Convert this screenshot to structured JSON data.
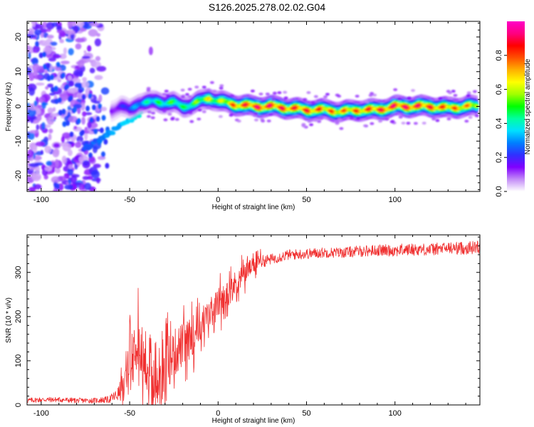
{
  "title": "S126.2025.278.02.02.G04",
  "chart_data": [
    {
      "type": "heatmap",
      "title": "S126.2025.278.02.02.G04",
      "xlabel": "Height of straight line (km)",
      "ylabel": "Frequency (Hz)",
      "xlim": [
        -108,
        148
      ],
      "ylim": [
        -24.5,
        24.5
      ],
      "xticks": [
        -100,
        -50,
        0,
        50,
        100
      ],
      "xtick_labels": [
        "-100",
        "-50",
        "0",
        "50",
        "100"
      ],
      "yticks": [
        -20,
        -10,
        0,
        10,
        20
      ],
      "ytick_labels": [
        "-20",
        "-10",
        "0",
        "10",
        "20"
      ],
      "ridge": {
        "x": [
          -60,
          -55,
          -50,
          -45,
          -40,
          -35,
          -30,
          -25,
          -20,
          -15,
          -10,
          -5,
          0,
          5,
          10,
          20,
          30,
          40,
          50,
          60,
          70,
          80,
          90,
          100,
          110,
          120,
          130,
          140,
          147
        ],
        "freq": [
          -1,
          0,
          -1,
          1,
          1,
          1.5,
          1,
          1,
          0,
          0.5,
          1.5,
          2.5,
          1.5,
          1,
          0.5,
          0,
          0,
          -0.5,
          -1,
          -1,
          -1.5,
          -1,
          -1,
          0,
          0,
          0,
          -0.5,
          0,
          0
        ],
        "amplitude": [
          0.15,
          0.2,
          0.3,
          0.35,
          0.45,
          0.5,
          0.5,
          0.55,
          0.5,
          0.55,
          0.6,
          0.7,
          0.6,
          0.75,
          0.85,
          0.95,
          0.95,
          0.9,
          0.9,
          0.85,
          0.8,
          0.85,
          0.9,
          0.95,
          0.95,
          0.9,
          0.85,
          0.8,
          0.75
        ]
      },
      "colorbar": {
        "label": "Normalized spectral amplitude",
        "range": [
          0,
          1
        ],
        "ticks": [
          0,
          0.2,
          0.4,
          0.6,
          0.8
        ],
        "tick_labels": [
          "0.0",
          "0.2",
          "0.4",
          "0.6",
          "0.8"
        ],
        "colors": [
          "#ffffff",
          "#c38cf7",
          "#8000ff",
          "#3030ff",
          "#0080ff",
          "#00e0ff",
          "#00ffa0",
          "#00ff00",
          "#a0ff00",
          "#ffff00",
          "#ffb000",
          "#ff5000",
          "#ff0000",
          "#ff0080",
          "#ff00c8"
        ]
      }
    },
    {
      "type": "line",
      "xlabel": "Height of straight line (km)",
      "ylabel": "SNR (10 * v/v)",
      "xlim": [
        -108,
        148
      ],
      "ylim": [
        0,
        385
      ],
      "xticks": [
        -100,
        -50,
        0,
        50,
        100
      ],
      "xtick_labels": [
        "-100",
        "-50",
        "0",
        "50",
        "100"
      ],
      "yticks": [
        0,
        100,
        200,
        300
      ],
      "ytick_labels": [
        "0",
        "100",
        "200",
        "300"
      ],
      "line_color": "#f03030",
      "series": [
        {
          "name": "SNR",
          "x": [
            -108,
            -100,
            -90,
            -80,
            -70,
            -62,
            -57,
            -53,
            -50,
            -48,
            -46,
            -44,
            -42,
            -40,
            -38,
            -36,
            -34,
            -32,
            -30,
            -28,
            -26,
            -24,
            -22,
            -20,
            -18,
            -16,
            -14,
            -12,
            -10,
            -8,
            -6,
            -4,
            -2,
            0,
            2,
            4,
            6,
            8,
            10,
            12,
            14,
            16,
            18,
            20,
            22,
            25,
            30,
            35,
            40,
            50,
            60,
            70,
            80,
            90,
            100,
            110,
            120,
            130,
            140,
            148
          ],
          "values": [
            10,
            12,
            12,
            10,
            10,
            12,
            22,
            45,
            100,
            120,
            180,
            110,
            90,
            80,
            70,
            50,
            40,
            60,
            90,
            100,
            110,
            120,
            130,
            135,
            140,
            150,
            160,
            170,
            180,
            190,
            200,
            210,
            220,
            230,
            235,
            245,
            255,
            265,
            275,
            285,
            295,
            305,
            310,
            315,
            320,
            325,
            330,
            335,
            340,
            342,
            345,
            345,
            348,
            350,
            350,
            352,
            352,
            355,
            355,
            358
          ],
          "spread": [
            6,
            6,
            6,
            6,
            6,
            8,
            15,
            35,
            55,
            70,
            70,
            60,
            55,
            55,
            55,
            55,
            55,
            60,
            60,
            60,
            55,
            55,
            55,
            50,
            50,
            45,
            45,
            40,
            40,
            40,
            35,
            35,
            35,
            35,
            35,
            30,
            30,
            30,
            30,
            25,
            25,
            25,
            20,
            18,
            16,
            14,
            12,
            12,
            12,
            12,
            12,
            12,
            13,
            13,
            14,
            14,
            14,
            14,
            15,
            15
          ]
        }
      ]
    }
  ]
}
